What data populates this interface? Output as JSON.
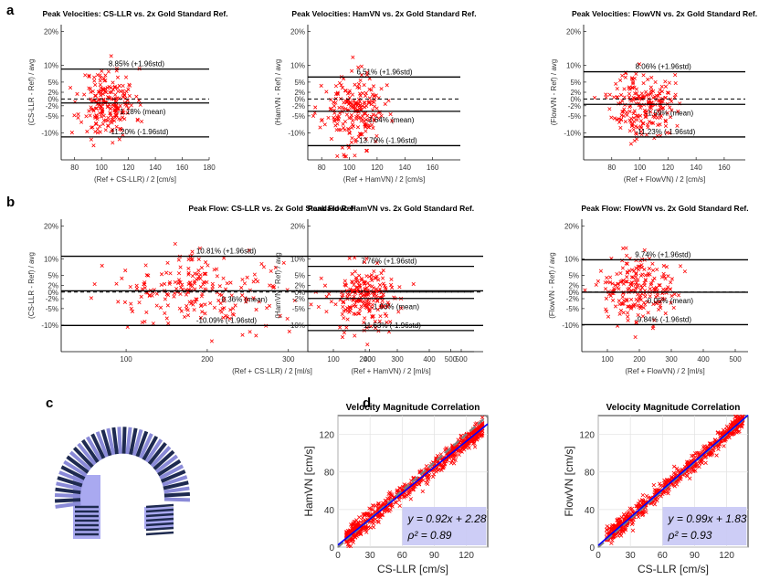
{
  "labels": {
    "a": "a",
    "b": "b",
    "c": "c",
    "d": "d"
  },
  "colors": {
    "points": "#ff0000",
    "fit": "#0000ff",
    "identity": "#808080",
    "eqbox": "#c8c8f5",
    "vessel_dark": "#1e2a50",
    "vessel_light": "#a0a0ee"
  },
  "chart_data": [
    {
      "type": "scatter",
      "panel": "a",
      "title": "Peak Velocities: CS-LLR vs. 2x Gold Standard Ref.",
      "xlabel": "(Ref + CS-LLR) / 2 [cm/s]",
      "ylabel": "(CS-LLR - Ref) / avg",
      "xlim": [
        70,
        180
      ],
      "ylim": [
        -18,
        22
      ],
      "xticks": [
        80,
        100,
        120,
        140,
        160,
        180
      ],
      "yticks": [
        20,
        10,
        5,
        2,
        0,
        -2,
        -5,
        -10
      ],
      "ytick_labels": [
        "20%",
        "10%",
        "5%",
        "2%",
        "0%",
        "-2%",
        "-5%",
        "-10%"
      ],
      "lines": [
        {
          "y": 8.85,
          "label": "8.85% (+1.96std)",
          "style": "solid"
        },
        {
          "y": -1.18,
          "label": "-1.18% (mean)",
          "style": "solid"
        },
        {
          "y": -11.2,
          "label": "-11.20% (-1.96std)",
          "style": "solid"
        },
        {
          "y": 0,
          "style": "dashed"
        }
      ],
      "cloud": {
        "x_center": 105,
        "x_spread": 10,
        "x_min": 72,
        "x_max": 135,
        "y_mean": -1.18,
        "y_std": 5.1,
        "n": 220,
        "seed": 11
      }
    },
    {
      "type": "scatter",
      "panel": "a",
      "title": "Peak Velocities: HamVN vs. 2x Gold Standard Ref.",
      "xlabel": "(Ref + HamVN) / 2 [cm/s]",
      "ylabel": "(HamVN - Ref) / avg",
      "xlim": [
        70,
        180
      ],
      "ylim": [
        -18,
        22
      ],
      "xticks": [
        80,
        100,
        120,
        140,
        160
      ],
      "yticks": [
        20,
        10,
        5,
        2,
        0,
        -2,
        -5,
        -10
      ],
      "ytick_labels": [
        "20%",
        "10%",
        "5%",
        "2%",
        "0%",
        "-2%",
        "-5%",
        "-10%"
      ],
      "lines": [
        {
          "y": 6.51,
          "label": "6.51% (+1.96std)",
          "style": "solid"
        },
        {
          "y": -3.64,
          "label": "-3.64% (mean)",
          "style": "solid"
        },
        {
          "y": -13.79,
          "label": "-13.79% (-1.96std)",
          "style": "solid"
        },
        {
          "y": 0,
          "style": "dashed"
        }
      ],
      "cloud": {
        "x_center": 103,
        "x_spread": 11,
        "x_min": 74,
        "x_max": 132,
        "y_mean": -3.64,
        "y_std": 5.2,
        "n": 220,
        "seed": 23
      }
    },
    {
      "type": "scatter",
      "panel": "a",
      "title": "Peak Velocities: FlowVN vs. 2x Gold Standard Ref.",
      "xlabel": "(Ref + FlowVN) / 2 [cm/s]",
      "ylabel": "(FlowVN - Ref) / avg",
      "xlim": [
        60,
        175
      ],
      "ylim": [
        -18,
        22
      ],
      "xticks": [
        80,
        100,
        120,
        140,
        160
      ],
      "yticks": [
        20,
        10,
        5,
        2,
        0,
        -2,
        -5,
        -10
      ],
      "ytick_labels": [
        "20%",
        "10%",
        "5%",
        "2%",
        "0%",
        "-2%",
        "-5%",
        "-10%"
      ],
      "lines": [
        {
          "y": 8.06,
          "label": "8.06% (+1.96std)",
          "style": "solid"
        },
        {
          "y": -1.59,
          "label": "-1.59% (mean)",
          "style": "solid"
        },
        {
          "y": -11.23,
          "label": "-11.23% (-1.96std)",
          "style": "solid"
        },
        {
          "y": 0,
          "style": "dashed"
        }
      ],
      "cloud": {
        "x_center": 102,
        "x_spread": 11,
        "x_min": 64,
        "x_max": 130,
        "y_mean": -1.59,
        "y_std": 4.9,
        "n": 220,
        "seed": 37
      }
    },
    {
      "type": "scatter",
      "panel": "b",
      "title": "Peak Flow: CS-LLR vs. 2x Gold Standard Ref.",
      "xlabel": "(Ref + CS-LLR) / 2 [ml/s]",
      "ylabel": "(CS-LLR - Ref) / avg",
      "xlim": [
        20,
        540
      ],
      "ylim": [
        -18,
        22
      ],
      "xticks": [
        100,
        200,
        300,
        400,
        500
      ],
      "yticks": [
        20,
        10,
        5,
        2,
        0,
        -2,
        -5,
        -10
      ],
      "ytick_labels": [
        "20%",
        "10%",
        "5%",
        "2%",
        "0%",
        "-2%",
        "-5%",
        "-10%"
      ],
      "lines": [
        {
          "y": 10.81,
          "label": "10.81% (+1.96std)",
          "style": "solid"
        },
        {
          "y": 0.36,
          "label": "0.36% (mean)",
          "style": "solid"
        },
        {
          "y": -10.09,
          "label": "-10.09% (-1.96std)",
          "style": "solid"
        },
        {
          "y": 0,
          "style": "dashed"
        }
      ],
      "cloud": {
        "x_center": 190,
        "x_spread": 55,
        "x_min": 30,
        "x_max": 420,
        "y_mean": 0.36,
        "y_std": 5.3,
        "n": 220,
        "seed": 41
      }
    },
    {
      "type": "scatter",
      "panel": "b",
      "title": "Peak Flow: HamVN vs. 2x Gold Standard Ref.",
      "xlabel": "(Ref + HamVN) / 2 [ml/s]",
      "ylabel": "(HamVN - Ref) / avg",
      "xlim": [
        20,
        540
      ],
      "ylim": [
        -18,
        22
      ],
      "xticks": [
        100,
        200,
        300,
        400,
        500
      ],
      "yticks": [
        20,
        10,
        5,
        2,
        0,
        -2,
        -5,
        -10
      ],
      "ytick_labels": [
        "20%",
        "10%",
        "5%",
        "2%",
        "0%",
        "-2%",
        "-5%",
        "-10%"
      ],
      "lines": [
        {
          "y": 7.76,
          "label": "7.76% (+1.96std)",
          "style": "solid"
        },
        {
          "y": -1.93,
          "label": "-1.93% (mean)",
          "style": "solid"
        },
        {
          "y": -11.63,
          "label": "-11.63% (-1.96std)",
          "style": "solid"
        },
        {
          "y": 0,
          "style": "dashed"
        }
      ],
      "cloud": {
        "x_center": 200,
        "x_spread": 55,
        "x_min": 40,
        "x_max": 410,
        "y_mean": -1.93,
        "y_std": 4.9,
        "n": 220,
        "seed": 53
      }
    },
    {
      "type": "scatter",
      "panel": "b",
      "title": "Peak Flow: FlowVN vs. 2x Gold Standard Ref.",
      "xlabel": "(Ref + FlowVN) / 2 [ml/s]",
      "ylabel": "(FlowVN - Ref) / avg",
      "xlim": [
        20,
        540
      ],
      "ylim": [
        -18,
        22
      ],
      "xticks": [
        100,
        200,
        300,
        400,
        500
      ],
      "yticks": [
        20,
        10,
        5,
        2,
        0,
        -2,
        -5,
        -10
      ],
      "ytick_labels": [
        "20%",
        "10%",
        "5%",
        "2%",
        "0%",
        "-2%",
        "-5%",
        "-10%"
      ],
      "lines": [
        {
          "y": 9.74,
          "label": "9.74% (+1.96std)",
          "style": "solid"
        },
        {
          "y": -0.05,
          "label": "-0.05% (mean)",
          "style": "solid"
        },
        {
          "y": -9.84,
          "label": "-9.84% (-1.96std)",
          "style": "solid"
        },
        {
          "y": 0,
          "style": "dashed"
        }
      ],
      "cloud": {
        "x_center": 190,
        "x_spread": 55,
        "x_min": 30,
        "x_max": 400,
        "y_mean": -0.05,
        "y_std": 5.0,
        "n": 220,
        "seed": 67
      }
    },
    {
      "type": "scatter",
      "panel": "d",
      "title": "Velocity Magnitude Correlation",
      "xlabel": "CS-LLR [cm/s]",
      "ylabel": "HamVN [cm/s]",
      "xlim": [
        0,
        140
      ],
      "ylim": [
        0,
        140
      ],
      "xticks": [
        0,
        30,
        60,
        90,
        120
      ],
      "yticks": [
        0,
        40,
        80,
        120
      ],
      "fit": {
        "slope": 0.92,
        "intercept": 2.28
      },
      "equation": "y = 0.92x + 2.28",
      "r2": "ρ² = 0.89",
      "cloud": {
        "x_min": 8,
        "x_max": 135,
        "slope": 0.92,
        "intercept": 2.28,
        "noise": 5,
        "n": 700,
        "seed": 71
      }
    },
    {
      "type": "scatter",
      "panel": "d",
      "title": "Velocity Magnitude Correlation",
      "xlabel": "CS-LLR [cm/s]",
      "ylabel": "FlowVN [cm/s]",
      "xlim": [
        0,
        140
      ],
      "ylim": [
        0,
        140
      ],
      "xticks": [
        0,
        30,
        60,
        90,
        120
      ],
      "yticks": [
        0,
        40,
        80,
        120
      ],
      "fit": {
        "slope": 0.99,
        "intercept": 1.83
      },
      "equation": "y = 0.99x + 1.83",
      "r2": "ρ² = 0.93",
      "cloud": {
        "x_min": 8,
        "x_max": 135,
        "slope": 0.99,
        "intercept": 1.83,
        "noise": 4.5,
        "n": 700,
        "seed": 89
      }
    }
  ]
}
